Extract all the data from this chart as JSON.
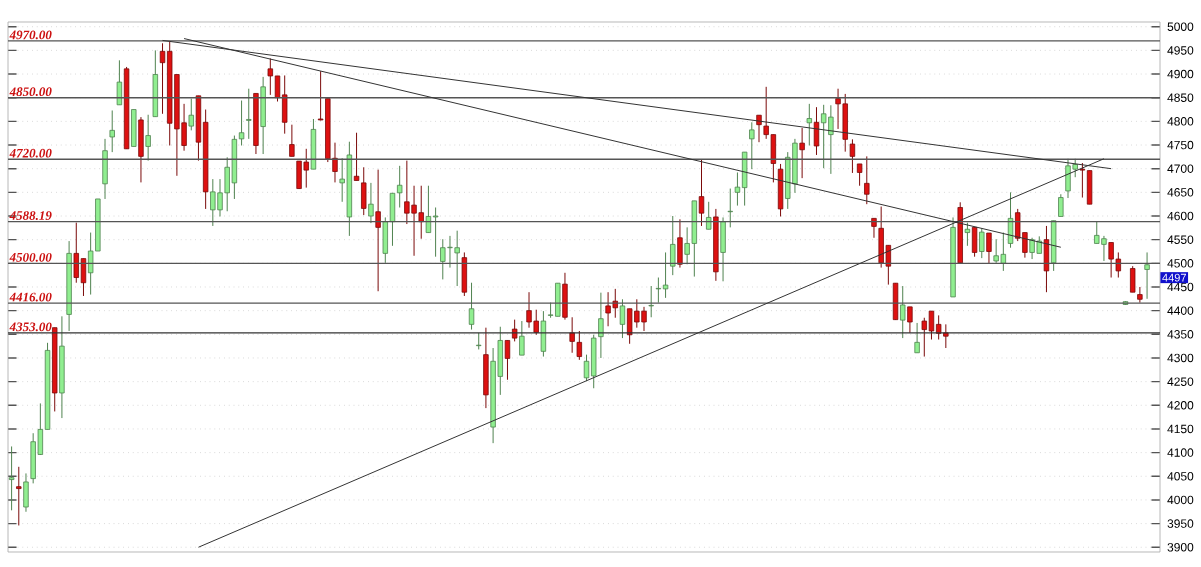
{
  "chart_data": {
    "type": "candlestick",
    "categories": [
      null,
      null,
      null,
      null,
      null,
      null,
      null,
      null,
      null,
      null,
      null,
      null,
      null,
      null,
      null,
      null,
      null,
      null,
      null,
      null,
      null,
      null,
      null,
      null,
      null,
      null,
      null,
      null,
      null,
      null,
      null,
      null,
      null,
      null,
      null,
      null,
      null,
      null,
      null,
      null,
      null,
      null,
      null,
      null,
      null,
      null,
      null,
      null,
      null,
      null,
      null,
      null,
      null,
      null,
      null,
      null,
      null,
      null,
      null,
      null,
      null,
      null,
      null,
      null,
      null,
      null,
      null,
      null,
      null,
      null,
      null,
      null,
      null,
      null,
      null,
      null,
      null,
      null,
      null,
      null,
      null,
      null,
      null,
      null,
      null,
      null,
      null,
      null,
      null,
      null,
      null,
      null,
      null,
      null,
      null,
      null,
      null,
      null,
      null,
      null,
      null,
      null,
      null,
      null,
      null,
      null,
      null,
      null,
      null,
      null,
      null,
      null,
      null,
      null,
      null,
      null,
      null,
      null,
      null,
      null,
      null,
      null,
      null,
      null,
      null,
      null,
      null,
      null,
      null,
      null,
      null,
      null,
      null,
      null,
      null,
      null,
      null,
      null,
      null,
      null,
      null,
      null,
      null,
      null,
      null,
      null,
      null,
      null,
      null,
      null,
      null,
      null,
      null,
      null,
      null,
      null,
      null,
      null,
      null
    ],
    "series": [
      {
        "ohlc": [
          [
            4043,
            4113,
            3978,
            4047
          ],
          [
            4028,
            4070,
            3946,
            4024
          ],
          [
            3985,
            4056,
            3975,
            4038
          ],
          [
            4045,
            4141,
            4035,
            4123
          ],
          [
            4096,
            4204,
            4095,
            4149
          ],
          [
            4149,
            4332,
            4149,
            4316
          ],
          [
            4364,
            4364,
            4187,
            4226
          ],
          [
            4226,
            4388,
            4173,
            4325
          ],
          [
            4392,
            4547,
            4357,
            4521
          ],
          [
            4521,
            4586,
            4459,
            4470
          ],
          [
            4510,
            4510,
            4431,
            4459
          ],
          [
            4480,
            4565,
            4434,
            4526
          ],
          [
            4526,
            4636,
            4526,
            4636
          ],
          [
            4668,
            4763,
            4636,
            4738
          ],
          [
            4767,
            4823,
            4735,
            4781
          ],
          [
            4835,
            4929,
            4835,
            4883
          ],
          [
            4911,
            4915,
            4742,
            4742
          ],
          [
            4747,
            4825,
            4747,
            4825
          ],
          [
            4803,
            4809,
            4671,
            4726
          ],
          [
            4747,
            4814,
            4717,
            4770
          ],
          [
            4810,
            4950,
            4810,
            4899
          ],
          [
            4948,
            4965,
            4816,
            4924
          ],
          [
            4948,
            4968,
            4749,
            4796
          ],
          [
            4899,
            4899,
            4685,
            4784
          ],
          [
            4797,
            4837,
            4738,
            4749
          ],
          [
            4790,
            4848,
            4781,
            4813
          ],
          [
            4854,
            4854,
            4717,
            4756
          ],
          [
            4798,
            4825,
            4615,
            4651
          ],
          [
            4613,
            4678,
            4579,
            4651
          ],
          [
            4613,
            4678,
            4599,
            4649
          ],
          [
            4649,
            4724,
            4610,
            4703
          ],
          [
            4670,
            4770,
            4636,
            4762
          ],
          [
            4763,
            4844,
            4749,
            4776
          ],
          [
            4802,
            4869,
            4763,
            4804
          ],
          [
            4859,
            4859,
            4731,
            4749
          ],
          [
            4789,
            4894,
            4731,
            4873
          ],
          [
            4911,
            4933,
            4856,
            4896
          ],
          [
            4896,
            4896,
            4842,
            4850
          ],
          [
            4856,
            4897,
            4774,
            4798
          ],
          [
            4751,
            4793,
            4726,
            4726
          ],
          [
            4716,
            4716,
            4657,
            4658
          ],
          [
            4714,
            4742,
            4660,
            4697
          ],
          [
            4699,
            4805,
            4699,
            4783
          ],
          [
            4805,
            4906,
            4802,
            4803
          ],
          [
            4848,
            4848,
            4714,
            4721
          ],
          [
            4722,
            4755,
            4671,
            4694
          ],
          [
            4670,
            4722,
            4630,
            4678
          ],
          [
            4598,
            4757,
            4558,
            4729
          ],
          [
            4684,
            4776,
            4675,
            4675
          ],
          [
            4670,
            4703,
            4602,
            4616
          ],
          [
            4600,
            4670,
            4585,
            4625
          ],
          [
            4609,
            4698,
            4441,
            4576
          ],
          [
            4521,
            4597,
            4501,
            4588
          ],
          [
            4588,
            4648,
            4537,
            4648
          ],
          [
            4649,
            4706,
            4618,
            4665
          ],
          [
            4630,
            4717,
            4583,
            4606
          ],
          [
            4623,
            4664,
            4516,
            4606
          ],
          [
            4607,
            4664,
            4552,
            4588
          ],
          [
            4565,
            4664,
            4565,
            4599
          ],
          [
            4598,
            4618,
            4514,
            4600
          ],
          [
            4504,
            4551,
            4466,
            4533
          ],
          [
            4533,
            4558,
            4491,
            4534
          ],
          [
            4522,
            4569,
            4452,
            4533
          ],
          [
            4512,
            4523,
            4431,
            4439
          ],
          [
            4371,
            4459,
            4360,
            4404
          ],
          [
            4326,
            4353,
            4318,
            4327
          ],
          [
            4307,
            4364,
            4194,
            4222
          ],
          [
            4154,
            4321,
            4120,
            4293
          ],
          [
            4261,
            4366,
            4222,
            4337
          ],
          [
            4337,
            4337,
            4254,
            4299
          ],
          [
            4361,
            4381,
            4335,
            4342
          ],
          [
            4306,
            4378,
            4306,
            4346
          ],
          [
            4400,
            4439,
            4364,
            4376
          ],
          [
            4378,
            4402,
            4349,
            4354
          ],
          [
            4314,
            4399,
            4303,
            4378
          ],
          [
            4390,
            4417,
            4385,
            4391
          ],
          [
            4388,
            4458,
            4388,
            4458
          ],
          [
            4456,
            4480,
            4381,
            4386
          ],
          [
            4353,
            4386,
            4311,
            4335
          ],
          [
            4333,
            4357,
            4296,
            4303
          ],
          [
            4258,
            4307,
            4251,
            4293
          ],
          [
            4262,
            4349,
            4236,
            4342
          ],
          [
            4345,
            4438,
            4300,
            4383
          ],
          [
            4410,
            4439,
            4367,
            4395
          ],
          [
            4420,
            4446,
            4385,
            4406
          ],
          [
            4371,
            4424,
            4342,
            4410
          ],
          [
            4404,
            4404,
            4330,
            4349
          ],
          [
            4399,
            4424,
            4364,
            4376
          ],
          [
            4399,
            4408,
            4357,
            4376
          ],
          [
            4410,
            4452,
            4386,
            4411
          ],
          [
            4446,
            4470,
            4417,
            4447
          ],
          [
            4446,
            4523,
            4427,
            4454
          ],
          [
            4494,
            4600,
            4475,
            4540
          ],
          [
            4554,
            4593,
            4491,
            4498
          ],
          [
            4519,
            4576,
            4498,
            4542
          ],
          [
            4542,
            4632,
            4472,
            4632
          ],
          [
            4641,
            4719,
            4579,
            4606
          ],
          [
            4572,
            4630,
            4572,
            4597
          ],
          [
            4598,
            4615,
            4463,
            4482
          ],
          [
            4523,
            4597,
            4462,
            4588
          ],
          [
            4609,
            4658,
            4576,
            4610
          ],
          [
            4650,
            4692,
            4622,
            4661
          ],
          [
            4660,
            4735,
            4622,
            4735
          ],
          [
            4763,
            4798,
            4699,
            4782
          ],
          [
            4813,
            4813,
            4756,
            4793
          ],
          [
            4790,
            4873,
            4763,
            4772
          ],
          [
            4772,
            4772,
            4671,
            4711
          ],
          [
            4699,
            4710,
            4599,
            4615
          ],
          [
            4637,
            4735,
            4615,
            4724
          ],
          [
            4668,
            4763,
            4649,
            4754
          ],
          [
            4754,
            4786,
            4680,
            4740
          ],
          [
            4797,
            4837,
            4749,
            4806
          ],
          [
            4798,
            4830,
            4729,
            4748
          ],
          [
            4797,
            4835,
            4701,
            4816
          ],
          [
            4772,
            4834,
            4689,
            4809
          ],
          [
            4848,
            4869,
            4784,
            4837
          ],
          [
            4837,
            4858,
            4736,
            4762
          ],
          [
            4752,
            4762,
            4691,
            4726
          ],
          [
            4710,
            4710,
            4664,
            4692
          ],
          [
            4669,
            4726,
            4625,
            4646
          ],
          [
            4595,
            4595,
            4554,
            4578
          ],
          [
            4574,
            4620,
            4491,
            4501
          ],
          [
            4538,
            4538,
            4455,
            4494
          ],
          [
            4458,
            4458,
            4381,
            4381
          ],
          [
            4380,
            4452,
            4342,
            4412
          ],
          [
            4408,
            4408,
            4353,
            4376
          ],
          [
            4311,
            4374,
            4311,
            4333
          ],
          [
            4378,
            4385,
            4303,
            4360
          ],
          [
            4399,
            4399,
            4339,
            4357
          ],
          [
            4371,
            4390,
            4339,
            4352
          ],
          [
            4353,
            4371,
            4321,
            4346
          ],
          [
            4429,
            4597,
            4429,
            4576
          ],
          [
            4618,
            4629,
            4501,
            4501
          ],
          [
            4565,
            4586,
            4537,
            4572
          ],
          [
            4576,
            4576,
            4514,
            4523
          ],
          [
            4525,
            4574,
            4511,
            4566
          ],
          [
            4564,
            4564,
            4500,
            4525
          ],
          [
            4505,
            4551,
            4501,
            4516
          ],
          [
            4500,
            4565,
            4484,
            4519
          ],
          [
            4542,
            4650,
            4533,
            4595
          ],
          [
            4607,
            4615,
            4547,
            4553
          ],
          [
            4565,
            4565,
            4512,
            4523
          ],
          [
            4523,
            4554,
            4509,
            4550
          ],
          [
            4521,
            4557,
            4521,
            4547
          ],
          [
            4550,
            4579,
            4439,
            4484
          ],
          [
            4501,
            4590,
            4484,
            4590
          ],
          [
            4599,
            4646,
            4599,
            4639
          ],
          [
            4653,
            4721,
            4638,
            4706
          ],
          [
            4699,
            4721,
            4682,
            4709
          ],
          [
            4699,
            4712,
            4639,
            4697
          ],
          [
            4696,
            4696,
            4625,
            4625
          ],
          [
            4542,
            4588,
            4542,
            4559
          ],
          [
            4540,
            4558,
            4505,
            4552
          ],
          [
            4544,
            4544,
            4470,
            4509
          ],
          [
            4509,
            4523,
            4470,
            4484
          ],
          [
            4413,
            4420,
            4412,
            4419
          ],
          [
            4489,
            4494,
            4439,
            4439
          ],
          [
            4434,
            4450,
            4417,
            4424
          ],
          [
            4487,
            4523,
            4425,
            4497
          ]
        ],
        "colors": [
          "#90ee90",
          "#dd1111",
          "#90ee90",
          "#90ee90",
          "#90ee90",
          "#90ee90",
          "#dd1111",
          "#90ee90",
          "#90ee90",
          "#dd1111",
          "#dd1111",
          "#90ee90",
          "#90ee90",
          "#90ee90",
          "#90ee90",
          "#90ee90",
          "#dd1111",
          "#90ee90",
          "#dd1111",
          "#90ee90",
          "#90ee90",
          "#dd1111",
          "#dd1111",
          "#dd1111",
          "#dd1111",
          "#90ee90",
          "#dd1111",
          "#dd1111",
          "#90ee90",
          "#90ee90",
          "#90ee90",
          "#90ee90",
          "#90ee90",
          "#90ee90",
          "#dd1111",
          "#90ee90",
          "#dd1111",
          "#dd1111",
          "#dd1111",
          "#dd1111",
          "#dd1111",
          "#dd1111",
          "#90ee90",
          "#dd1111",
          "#dd1111",
          "#dd1111",
          "#90ee90",
          "#90ee90",
          "#dd1111",
          "#dd1111",
          "#90ee90",
          "#dd1111",
          "#90ee90",
          "#90ee90",
          "#90ee90",
          "#dd1111",
          "#dd1111",
          "#dd1111",
          "#90ee90",
          "#90ee90",
          "#90ee90",
          "#90ee90",
          "#90ee90",
          "#dd1111",
          "#90ee90",
          "#90ee90",
          "#dd1111",
          "#90ee90",
          "#90ee90",
          "#dd1111",
          "#dd1111",
          "#90ee90",
          "#dd1111",
          "#dd1111",
          "#90ee90",
          "#90ee90",
          "#90ee90",
          "#dd1111",
          "#dd1111",
          "#dd1111",
          "#90ee90",
          "#90ee90",
          "#90ee90",
          "#dd1111",
          "#dd1111",
          "#90ee90",
          "#dd1111",
          "#dd1111",
          "#dd1111",
          "#90ee90",
          "#90ee90",
          "#90ee90",
          "#90ee90",
          "#dd1111",
          "#90ee90",
          "#90ee90",
          "#dd1111",
          "#90ee90",
          "#dd1111",
          "#90ee90",
          "#90ee90",
          "#90ee90",
          "#90ee90",
          "#90ee90",
          "#dd1111",
          "#dd1111",
          "#dd1111",
          "#dd1111",
          "#90ee90",
          "#90ee90",
          "#dd1111",
          "#90ee90",
          "#dd1111",
          "#90ee90",
          "#90ee90",
          "#dd1111",
          "#dd1111",
          "#dd1111",
          "#dd1111",
          "#dd1111",
          "#dd1111",
          "#dd1111",
          "#dd1111",
          "#dd1111",
          "#90ee90",
          "#dd1111",
          "#90ee90",
          "#dd1111",
          "#dd1111",
          "#dd1111",
          "#dd1111",
          "#90ee90",
          "#dd1111",
          "#90ee90",
          "#dd1111",
          "#90ee90",
          "#dd1111",
          "#90ee90",
          "#90ee90",
          "#90ee90",
          "#dd1111",
          "#dd1111",
          "#90ee90",
          "#90ee90",
          "#dd1111",
          "#90ee90",
          "#90ee90",
          "#90ee90",
          "#90ee90",
          "#dd1111",
          "#dd1111",
          "#90ee90",
          "#90ee90",
          "#dd1111",
          "#dd1111",
          "#90ee90",
          "#dd1111",
          "#dd1111",
          "#90ee90"
        ]
      },
      {
        "type": "line",
        "values": [
          null,
          null,
          null,
          null,
          null,
          null,
          null,
          null,
          null,
          null,
          null,
          null,
          null,
          null,
          null,
          null,
          null,
          null,
          null,
          null,
          null,
          4971,
          null,
          null,
          null,
          null,
          null,
          null,
          null,
          null,
          null,
          null,
          null,
          null,
          null,
          null,
          null,
          null,
          null,
          null,
          null,
          null,
          null,
          null,
          null,
          null,
          null,
          null,
          null,
          null,
          null,
          null,
          null,
          null,
          null,
          null,
          null,
          null,
          null,
          null,
          null,
          null,
          null,
          null,
          null,
          null,
          null,
          null,
          null,
          null,
          null,
          null,
          null,
          null,
          null,
          null,
          null,
          null,
          null,
          null,
          null,
          null,
          null,
          null,
          null,
          null,
          null,
          null,
          null,
          null,
          null,
          null,
          null,
          null,
          null,
          null,
          null,
          null,
          null,
          null,
          null,
          null,
          null,
          null,
          null,
          null,
          null,
          null,
          null,
          null,
          null,
          null,
          null,
          null,
          null,
          null,
          null,
          null,
          null,
          null,
          null,
          null,
          null,
          null,
          null,
          null,
          null,
          null,
          null,
          null,
          null,
          null,
          null,
          null,
          null,
          null,
          null,
          null,
          null,
          null,
          null,
          null,
          null,
          null,
          null,
          null,
          null,
          null,
          null,
          null,
          null,
          null,
          null,
          4700,
          null,
          null,
          null,
          null,
          null
        ],
        "color": "#333333"
      },
      {
        "type": "line",
        "values": [
          null,
          null,
          null,
          null,
          null,
          null,
          null,
          null,
          null,
          null,
          null,
          null,
          null,
          null,
          null,
          null,
          null,
          null,
          null,
          null,
          null,
          null,
          null,
          null,
          4975,
          null,
          null,
          null,
          null,
          null,
          null,
          null,
          null,
          null,
          null,
          null,
          null,
          null,
          null,
          null,
          null,
          null,
          null,
          null,
          null,
          null,
          null,
          null,
          null,
          null,
          null,
          null,
          null,
          null,
          null,
          null,
          null,
          null,
          null,
          null,
          null,
          null,
          null,
          null,
          null,
          null,
          null,
          null,
          null,
          null,
          null,
          null,
          null,
          null,
          null,
          null,
          null,
          null,
          null,
          null,
          null,
          null,
          null,
          null,
          null,
          null,
          null,
          null,
          null,
          null,
          null,
          null,
          null,
          null,
          null,
          null,
          null,
          null,
          null,
          null,
          null,
          null,
          null,
          null,
          null,
          null,
          null,
          null,
          null,
          null,
          null,
          null,
          null,
          null,
          null,
          null,
          null,
          null,
          null,
          null,
          null,
          null,
          null,
          null,
          null,
          null,
          null,
          null,
          null,
          null,
          null,
          null,
          null,
          null,
          null,
          null,
          null,
          null,
          null,
          null,
          null,
          null,
          null,
          null,
          null,
          null,
          4534,
          null,
          null,
          null,
          null,
          null,
          null,
          null,
          null,
          null,
          null,
          null,
          null
        ],
        "color": "#333333"
      },
      {
        "type": "line",
        "values": [
          null,
          null,
          null,
          null,
          null,
          null,
          null,
          null,
          null,
          null,
          null,
          null,
          null,
          null,
          null,
          null,
          null,
          null,
          null,
          null,
          null,
          null,
          null,
          null,
          null,
          null,
          3900,
          null,
          null,
          null,
          null,
          null,
          null,
          null,
          null,
          null,
          null,
          null,
          null,
          null,
          null,
          null,
          null,
          null,
          null,
          null,
          null,
          null,
          null,
          null,
          null,
          null,
          null,
          null,
          null,
          null,
          null,
          null,
          null,
          null,
          null,
          null,
          null,
          null,
          null,
          null,
          null,
          null,
          null,
          null,
          null,
          null,
          null,
          null,
          null,
          null,
          null,
          null,
          null,
          null,
          null,
          null,
          null,
          null,
          null,
          null,
          null,
          null,
          null,
          null,
          null,
          null,
          null,
          null,
          null,
          null,
          null,
          null,
          null,
          null,
          null,
          null,
          null,
          null,
          null,
          null,
          null,
          null,
          null,
          null,
          null,
          null,
          null,
          null,
          null,
          null,
          null,
          null,
          null,
          null,
          null,
          null,
          null,
          null,
          null,
          null,
          null,
          null,
          null,
          null,
          null,
          null,
          null,
          null,
          null,
          null,
          null,
          null,
          null,
          null,
          null,
          null,
          null,
          null,
          null,
          null,
          null,
          null,
          null,
          null,
          null,
          null,
          4721,
          null,
          null,
          null,
          null,
          null,
          null
        ],
        "color": "#333333"
      }
    ],
    "ylim": [
      3890,
      5010
    ],
    "yticks": [
      3900,
      3950,
      4000,
      4050,
      4100,
      4150,
      4200,
      4250,
      4300,
      4350,
      4400,
      4450,
      4500,
      4550,
      4600,
      4650,
      4700,
      4750,
      4800,
      4850,
      4900,
      4950,
      5000
    ],
    "grid": "y",
    "tick_labels": "y",
    "ref_lines": [
      {
        "axis": "y",
        "value": 4970,
        "label": "4970.00",
        "color": "#555555"
      },
      {
        "axis": "y",
        "value": 4850,
        "label": "4850.00",
        "color": "#555555"
      },
      {
        "axis": "y",
        "value": 4720,
        "label": "4720.00",
        "color": "#555555"
      },
      {
        "axis": "y",
        "value": 4588.19,
        "label": "4588.19",
        "color": "#555555"
      },
      {
        "axis": "y",
        "value": 4500,
        "label": "4500.00",
        "color": "#555555"
      },
      {
        "axis": "y",
        "value": 4416,
        "label": "4416.00",
        "color": "#555555"
      },
      {
        "axis": "y",
        "value": 4353,
        "label": "4353.00",
        "color": "#333333"
      }
    ],
    "annotations": [
      "4497"
    ]
  }
}
